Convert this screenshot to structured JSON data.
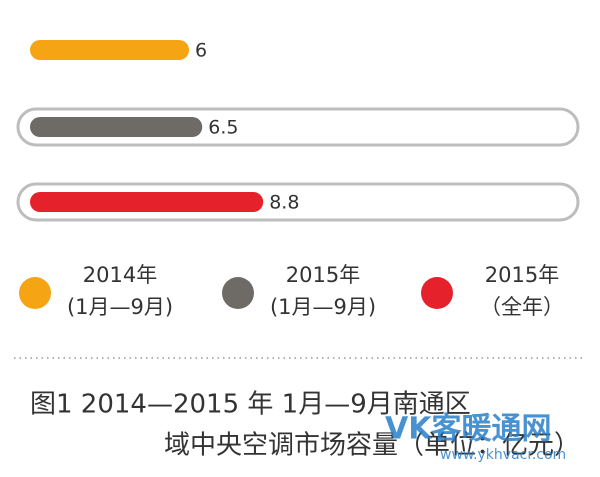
{
  "chart_data": {
    "type": "hbar",
    "series": [
      {
        "name": "2014年",
        "period": "(1月—9月)",
        "color": "#f5a413",
        "values": [
          6
        ],
        "track": false
      },
      {
        "name": "2015年",
        "period": "(1月—9月)",
        "color": "#6e6b67",
        "values": [
          6.5
        ],
        "track": true
      },
      {
        "name": "2015年",
        "period": "（全年）",
        "color": "#e5212b",
        "values": [
          8.8
        ],
        "track": true
      }
    ],
    "xlim": [
      0,
      20
    ],
    "caption": [
      "图1  2014—2015 年 1月—9月南通区",
      "域中央空调市场容量（单位：亿元）"
    ],
    "watermark": [
      "VK客暖通网",
      "www.ykhvacr.com"
    ]
  }
}
